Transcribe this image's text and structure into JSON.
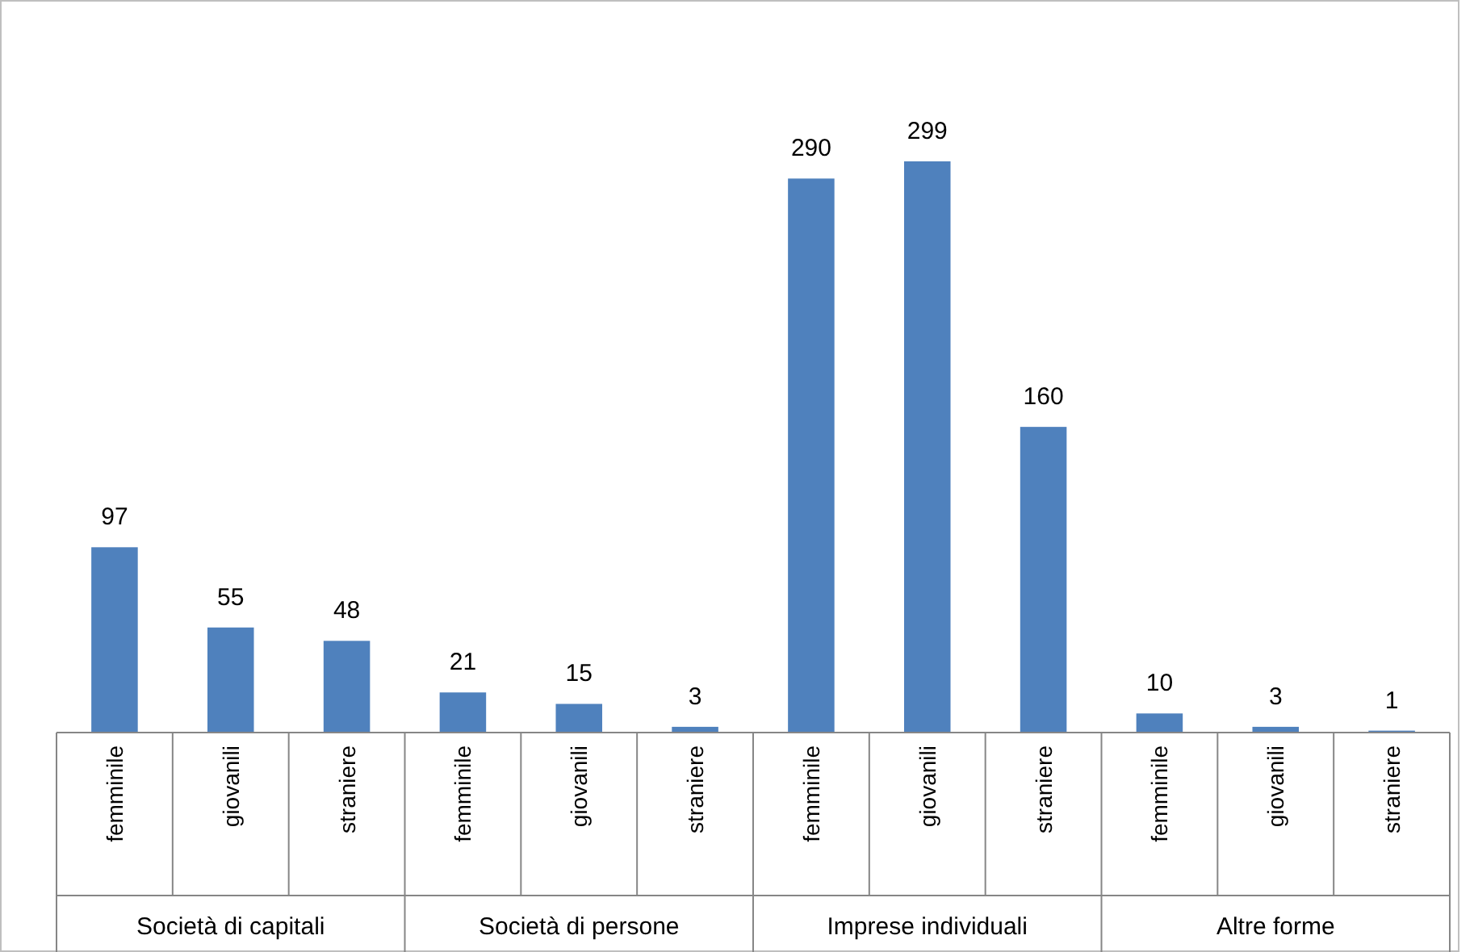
{
  "chart_data": {
    "type": "bar",
    "categories": [
      "femminile",
      "giovanili",
      "straniere",
      "femminile",
      "giovanili",
      "straniere",
      "femminile",
      "giovanili",
      "straniere",
      "femminile",
      "giovanili",
      "straniere"
    ],
    "values": [
      97,
      55,
      48,
      21,
      15,
      3,
      290,
      299,
      160,
      10,
      3,
      1
    ],
    "color": "#4f81bd",
    "data_labels": true,
    "annotations": [
      "Società di capitali",
      "Società di persone",
      "Imprese individuali",
      "Altre forme"
    ]
  }
}
